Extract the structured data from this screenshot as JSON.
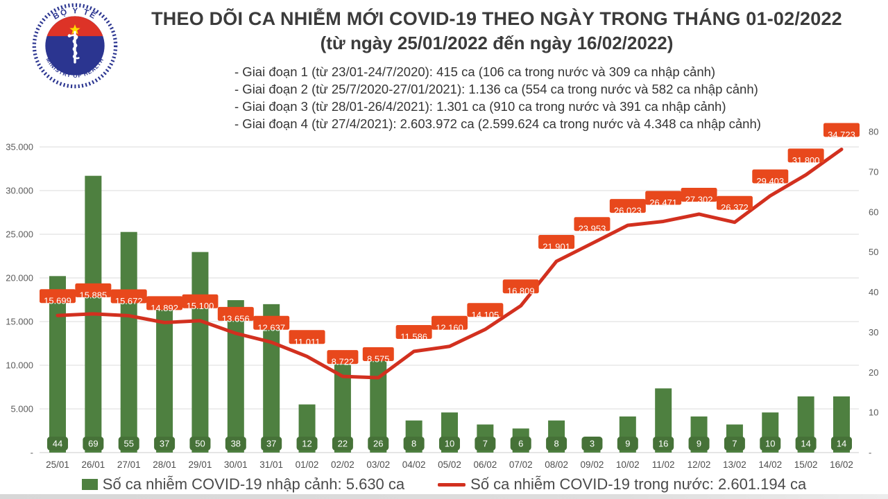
{
  "logo": {
    "top_text": "BỘ Y TẾ",
    "bottom_text": "MINISTRY OF HEALTH"
  },
  "header": {
    "title": "THEO DÕI CA NHIỄM MỚI COVID-19 THEO NGÀY TRONG THÁNG 01-02/2022",
    "subtitle": "(từ ngày 25/01/2022 đến ngày 16/02/2022)",
    "phases": [
      "- Giai đoạn 1 (từ 23/01-24/7/2020): 415 ca (106 ca trong nước và 309 ca nhập cảnh)",
      "- Giai đoạn 2 (từ 25/7/2020-27/01/2021): 1.136 ca (554 ca trong nước và 582 ca nhập cảnh)",
      "- Giai đoạn 3 (từ 28/01-26/4/2021): 1.301 ca (910 ca trong nước và 391 ca nhập cảnh)",
      "- Giai đoạn 4 (từ 27/4/2021): 2.603.972 ca (2.599.624 ca trong nước và 4.348 ca nhập cảnh)"
    ]
  },
  "chart_data": {
    "type": "combo-bar-line",
    "categories": [
      "25/01",
      "26/01",
      "27/01",
      "28/01",
      "29/01",
      "30/01",
      "31/01",
      "01/02",
      "02/02",
      "03/02",
      "04/02",
      "05/02",
      "06/02",
      "07/02",
      "08/02",
      "09/02",
      "10/02",
      "11/02",
      "12/02",
      "13/02",
      "14/02",
      "15/02",
      "16/02"
    ],
    "series": [
      {
        "name": "Số ca nhiễm COVID-19 nhập cảnh",
        "type": "bar",
        "axis": "right",
        "color": "#4E8040",
        "values": [
          44,
          69,
          55,
          37,
          50,
          38,
          37,
          12,
          22,
          26,
          8,
          10,
          7,
          6,
          8,
          3,
          9,
          16,
          9,
          7,
          10,
          14,
          14
        ]
      },
      {
        "name": "Số ca nhiễm COVID-19 trong nước",
        "type": "line",
        "axis": "left",
        "color": "#D2301F",
        "values": [
          15699,
          15885,
          15672,
          14892,
          15100,
          13656,
          12637,
          11011,
          8722,
          8575,
          11586,
          12160,
          14105,
          16809,
          21901,
          23953,
          26023,
          26471,
          27302,
          26372,
          29403,
          31800,
          34723
        ]
      }
    ],
    "left_axis": {
      "min": 0,
      "max": 35000,
      "grid_step": 5000,
      "tick_labels": [
        "35.000",
        "30.000",
        "25.000",
        "20.000",
        "15.000",
        "10.000",
        "5.000",
        "-"
      ]
    },
    "right_axis": {
      "min": 0,
      "max": 80,
      "tick_step": 10,
      "tick_labels": [
        "80",
        "70",
        "60",
        "50",
        "40",
        "30",
        "20",
        "10",
        "-"
      ]
    },
    "grid": true,
    "legend_position": "bottom",
    "colors": {
      "bar": "#4E8040",
      "bar_label_box": "#467238",
      "line": "#D2301F",
      "line_label_box": "#E8481C",
      "grid": "#E2E2E2",
      "axis_text": "#5a5a5a"
    }
  },
  "legend": {
    "bar_label": "Số ca nhiễm COVID-19 nhập cảnh: 5.630 ca",
    "line_label": "Số ca nhiễm COVID-19 trong nước: 2.601.194 ca"
  }
}
